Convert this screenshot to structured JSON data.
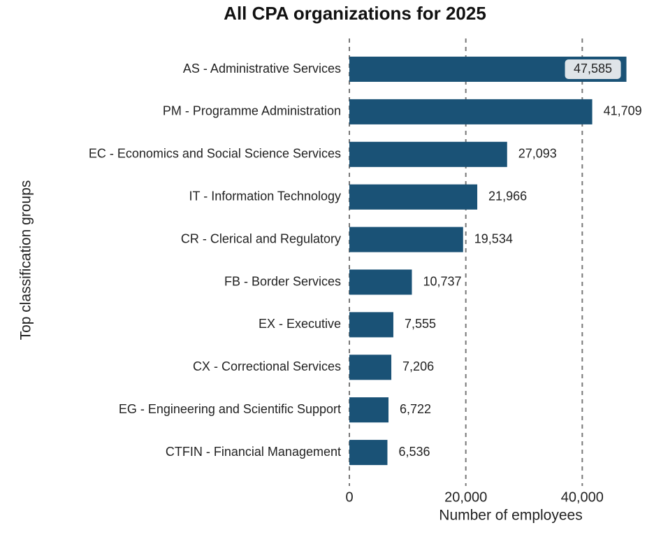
{
  "chart_data": {
    "type": "bar",
    "orientation": "horizontal",
    "title": "All CPA organizations for 2025",
    "x_label": "Number of employees",
    "y_label": "Top classification groups",
    "categories": [
      "AS - Administrative Services",
      "PM - Programme Administration",
      "EC - Economics and Social Science Services",
      "IT - Information Technology",
      "CR - Clerical and Regulatory",
      "FB - Border Services",
      "EX - Executive",
      "CX - Correctional Services",
      "EG - Engineering and Scientific Support",
      "CTFIN - Financial Management"
    ],
    "values": [
      47585,
      41709,
      27093,
      21966,
      19534,
      10737,
      7555,
      7206,
      6722,
      6536
    ],
    "value_labels": [
      "47,585",
      "41,709",
      "27,093",
      "21,966",
      "19,534",
      "10,737",
      "7,555",
      "7,206",
      "6,722",
      "6,536"
    ],
    "color": "#1a5276",
    "xlim": [
      0,
      48000
    ],
    "xticks": [
      0,
      {
        "value": 20000,
        "label": "20,000"
      },
      {
        "value": 40000,
        "label": "40,000"
      }
    ],
    "grid": true
  }
}
